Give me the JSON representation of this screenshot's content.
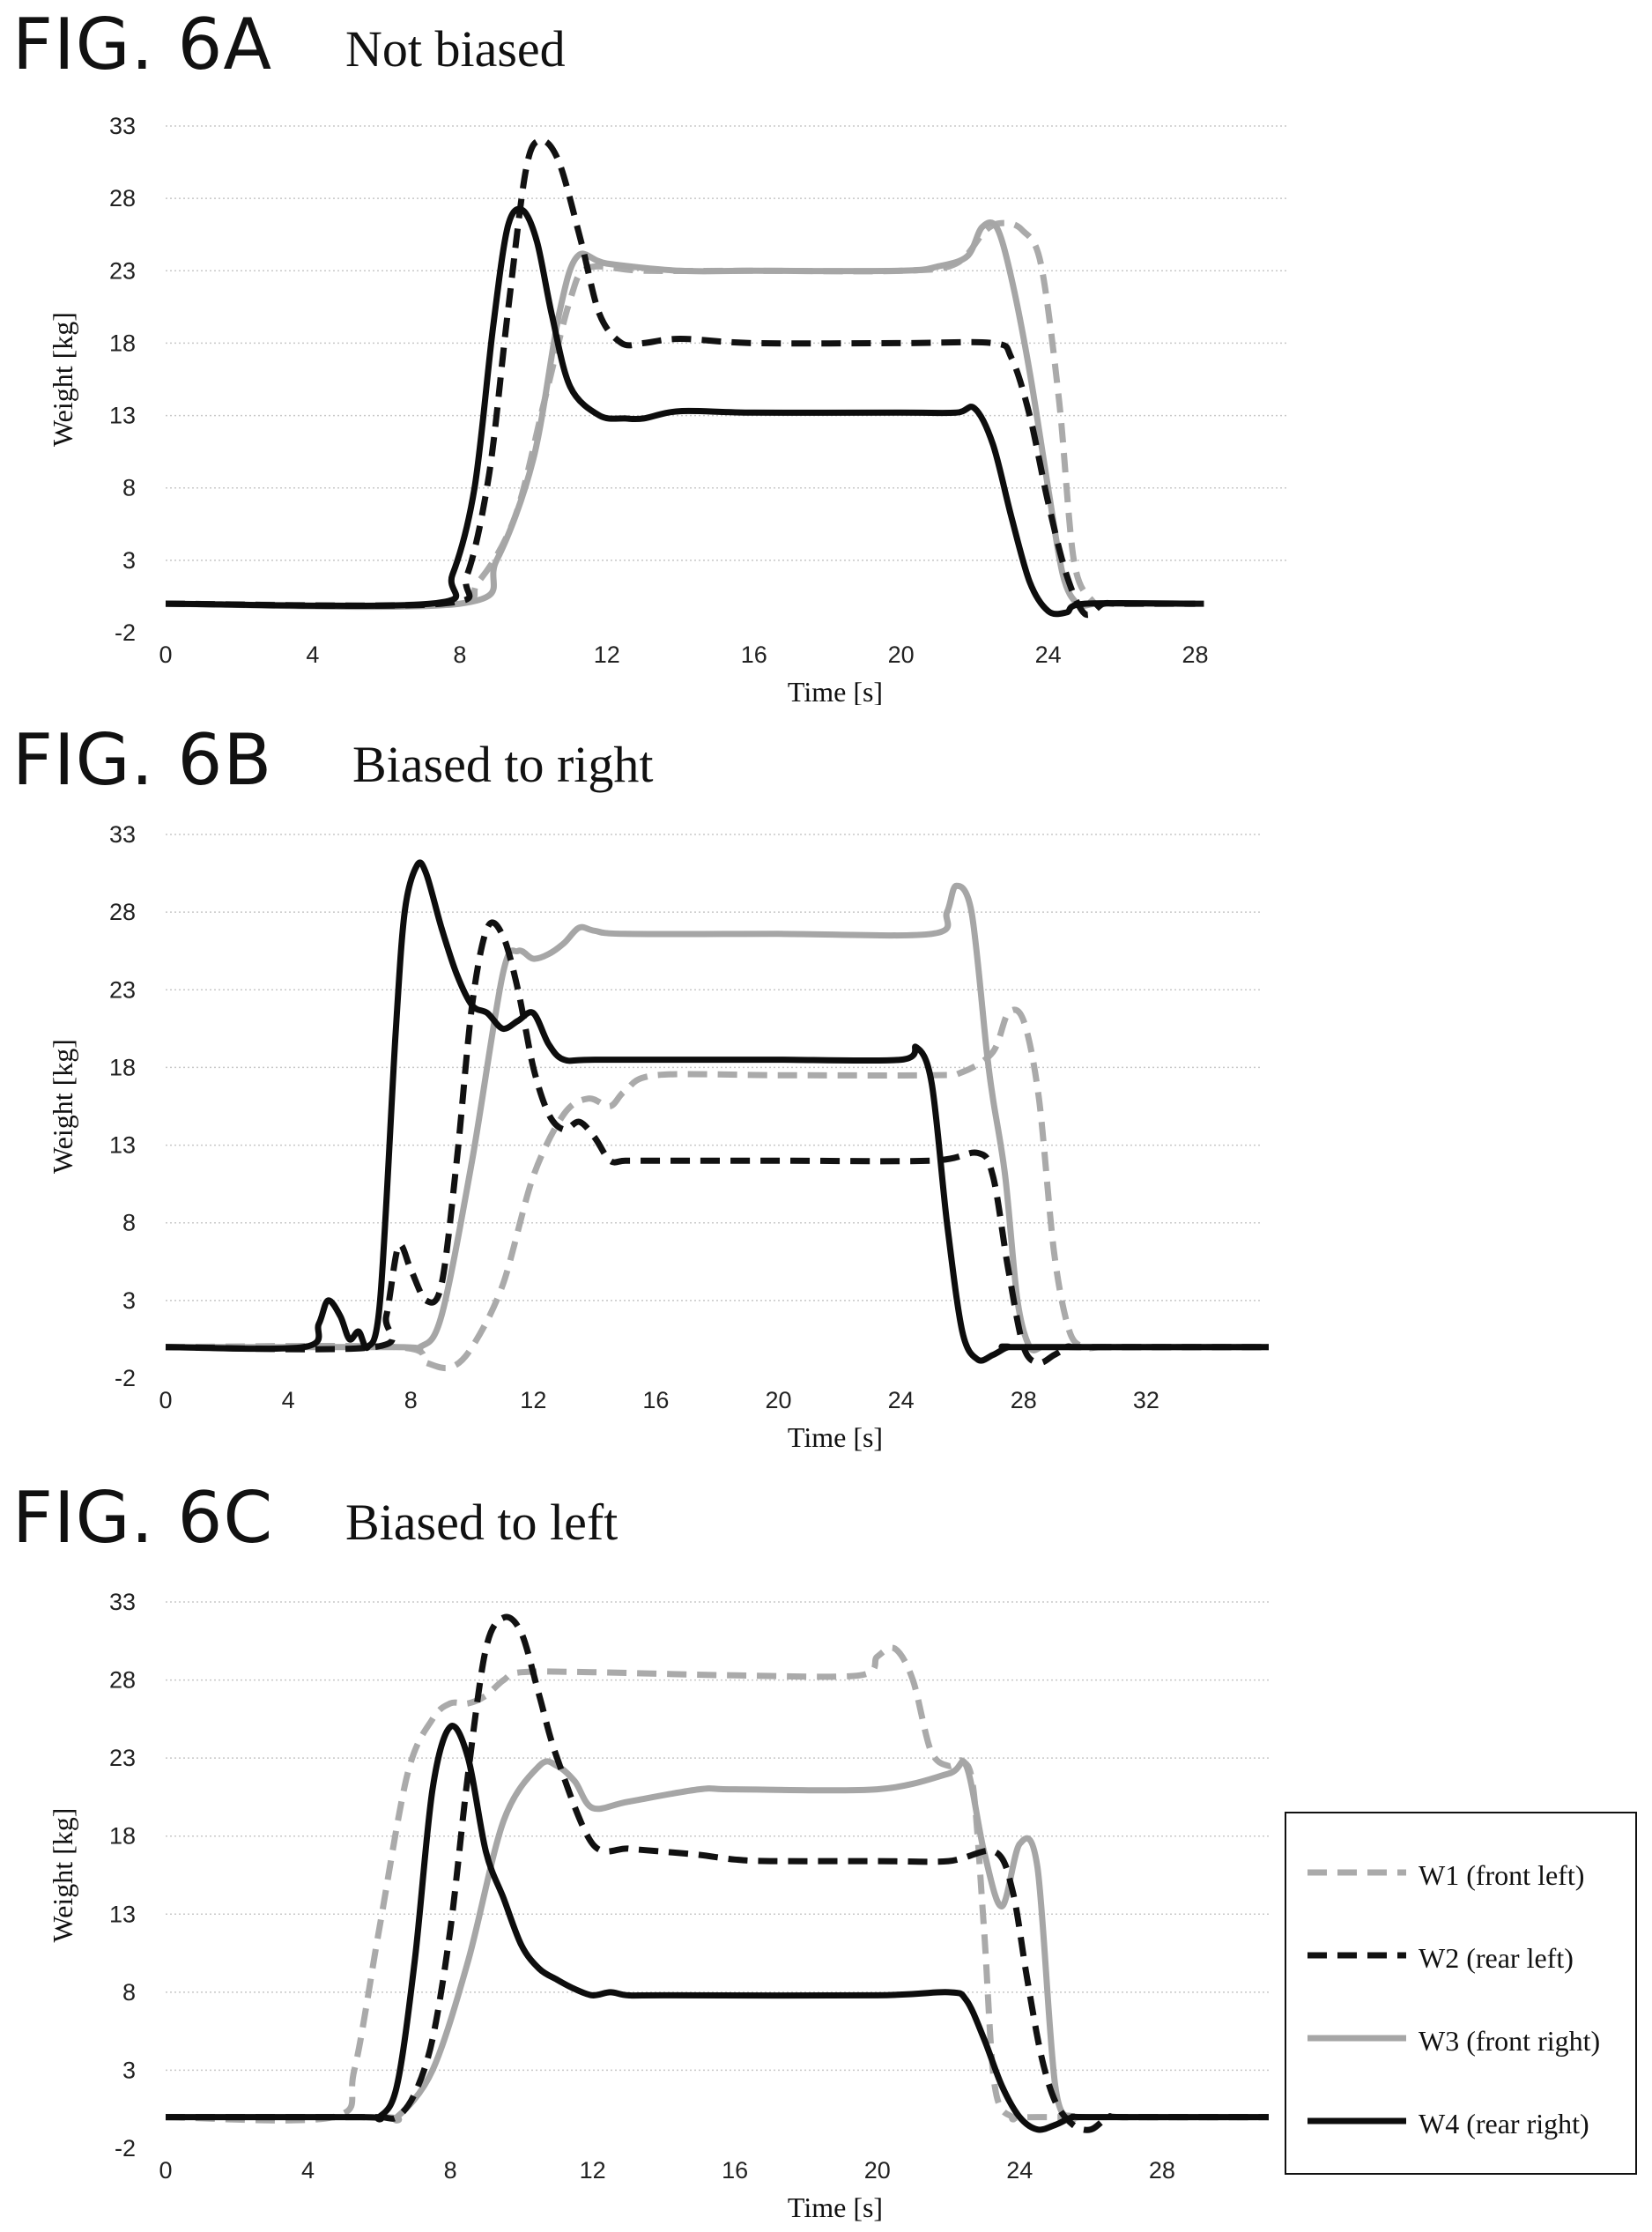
{
  "colors": {
    "w1": "#aaaaaa",
    "w2": "#111111",
    "w3": "#a6a6a6",
    "w4": "#0d0d0d",
    "grid": "#c8c8c8"
  },
  "series_styles": [
    {
      "key": "w1",
      "dash": true
    },
    {
      "key": "w2",
      "dash": true
    },
    {
      "key": "w3",
      "dash": false
    },
    {
      "key": "w4",
      "dash": false
    }
  ],
  "legend": {
    "items": [
      {
        "label": "W1 (front left)"
      },
      {
        "label": "W2 (rear left)"
      },
      {
        "label": "W3 (front right)"
      },
      {
        "label": "W4 (rear right)"
      }
    ]
  },
  "figures": [
    {
      "fig_label": "FIG. 6A",
      "subtitle": "Not biased"
    },
    {
      "fig_label": "FIG. 6B",
      "subtitle": "Biased to right"
    },
    {
      "fig_label": "FIG. 6C",
      "subtitle": "Biased to left"
    }
  ],
  "chart_data": [
    {
      "type": "line",
      "title": "Not biased",
      "xlabel": "Time [s]",
      "ylabel": "Weight [kg]",
      "xlim": [
        0,
        30
      ],
      "ylim": [
        -2,
        33
      ],
      "xticks": [
        0,
        4,
        8,
        12,
        16,
        20,
        24,
        28
      ],
      "yticks": [
        -2,
        3,
        8,
        13,
        18,
        23,
        28,
        33
      ],
      "grid": true,
      "series": [
        {
          "name": "W1 (front left)",
          "x": [
            0,
            7.5,
            8.5,
            9.5,
            10.3,
            11,
            11.5,
            13,
            16,
            20,
            21.5,
            22.3,
            22.8,
            23.3,
            23.8,
            24.3,
            24.7,
            25.2,
            25.6,
            26,
            28
          ],
          "y": [
            0,
            0,
            1.5,
            6,
            14,
            21,
            23.2,
            23,
            23,
            23,
            23.5,
            25.8,
            26.3,
            25.8,
            23.5,
            14,
            3,
            0.2,
            0,
            0,
            0
          ]
        },
        {
          "name": "W2 (rear left)",
          "x": [
            0,
            7.5,
            8.2,
            8.8,
            9.3,
            9.8,
            10.2,
            10.7,
            11.3,
            11.8,
            12.4,
            13,
            14,
            16,
            20,
            22.5,
            23,
            23.5,
            24,
            24.5,
            25,
            25.5,
            26,
            28.5
          ],
          "y": [
            0,
            0,
            2,
            9,
            20,
            30,
            32,
            30.5,
            25,
            20,
            18,
            18,
            18.3,
            18,
            18,
            18,
            17,
            13,
            7,
            2,
            -0.7,
            0,
            0,
            0
          ]
        },
        {
          "name": "W3 (front right)",
          "x": [
            0,
            8,
            9,
            10,
            10.7,
            11.2,
            12,
            14,
            16,
            20,
            21,
            21.8,
            22.2,
            22.6,
            23,
            23.5,
            24,
            24.4,
            24.8,
            25.3,
            26,
            28
          ],
          "y": [
            0,
            0,
            3,
            10,
            20,
            24,
            23.5,
            23,
            23,
            23,
            23.3,
            24,
            26,
            26,
            22.5,
            16,
            8,
            2,
            0,
            0,
            0,
            0
          ]
        },
        {
          "name": "W4 (rear right)",
          "x": [
            0,
            7.2,
            7.8,
            8.4,
            8.9,
            9.3,
            9.7,
            10.1,
            10.5,
            11,
            11.8,
            12.5,
            13,
            14,
            16,
            20,
            21.5,
            22,
            22.5,
            23,
            23.5,
            24,
            24.5,
            25,
            28
          ],
          "y": [
            0,
            0,
            2,
            8,
            19,
            26,
            27.2,
            25,
            20,
            15,
            13,
            12.8,
            12.8,
            13.3,
            13.2,
            13.2,
            13.2,
            13.5,
            11,
            6,
            1.5,
            -0.5,
            -0.6,
            0,
            0
          ]
        }
      ]
    },
    {
      "type": "line",
      "title": "Biased to right",
      "xlabel": "Time [s]",
      "ylabel": "Weight [kg]",
      "xlim": [
        0,
        36
      ],
      "ylim": [
        -2,
        33
      ],
      "xticks": [
        0,
        4,
        8,
        12,
        16,
        20,
        24,
        28,
        32
      ],
      "yticks": [
        -2,
        3,
        8,
        13,
        18,
        23,
        28,
        33
      ],
      "grid": true,
      "series": [
        {
          "name": "W1 (front left)",
          "x": [
            0,
            7.5,
            8.5,
            9.3,
            10,
            11,
            12,
            13,
            13.8,
            14.5,
            15,
            16,
            20,
            25,
            26,
            27,
            27.5,
            28,
            28.5,
            29,
            29.5,
            30,
            30.5,
            31,
            36
          ],
          "y": [
            0,
            0,
            -1,
            -1.3,
            0,
            4,
            11,
            15,
            16,
            15.5,
            16.5,
            17.5,
            17.5,
            17.5,
            17.7,
            19,
            21.5,
            21,
            16,
            6,
            1,
            0,
            0,
            0,
            0
          ]
        },
        {
          "name": "W2 (rear left)",
          "x": [
            0,
            6.8,
            7.2,
            7.6,
            8,
            8.5,
            9,
            9.5,
            10,
            10.5,
            11,
            11.5,
            12,
            12.5,
            13,
            13.5,
            14,
            14.5,
            15,
            16,
            20,
            25,
            26.5,
            27,
            27.5,
            28,
            28.5,
            29,
            29.5,
            30,
            36
          ],
          "y": [
            0,
            0,
            2,
            6.5,
            5,
            3,
            4,
            12,
            22,
            27,
            26.5,
            23,
            18,
            15,
            14,
            14.5,
            13.5,
            12,
            12,
            12,
            12,
            12,
            12.5,
            11,
            5,
            0,
            -1,
            -0.5,
            0,
            0,
            0
          ]
        },
        {
          "name": "W3 (front right)",
          "x": [
            0,
            7.5,
            8.3,
            9,
            10,
            11,
            11.5,
            12,
            12.5,
            13,
            13.5,
            14,
            15,
            20,
            25,
            25.5,
            25.8,
            26.3,
            26.8,
            27,
            27.4,
            27.8,
            28.2,
            28.6,
            29,
            36
          ],
          "y": [
            0,
            0,
            0,
            2,
            12,
            24,
            25.5,
            25,
            25.3,
            26,
            27,
            26.8,
            26.6,
            26.6,
            26.6,
            28,
            29.7,
            28,
            19,
            16,
            11,
            3,
            0,
            0,
            0,
            0
          ]
        },
        {
          "name": "W4 (rear right)",
          "x": [
            0,
            4.5,
            5,
            5.3,
            5.7,
            6,
            6.3,
            6.6,
            7,
            7.5,
            7.8,
            8.2,
            8.5,
            9,
            9.5,
            10,
            10.5,
            11,
            11.5,
            12,
            12.5,
            13,
            14,
            18,
            20,
            24,
            24.5,
            25,
            25.5,
            26,
            26.5,
            27,
            27.5,
            28,
            36
          ],
          "y": [
            0,
            0,
            1.5,
            3,
            2,
            0.5,
            1,
            0,
            3,
            20,
            28,
            31,
            30.5,
            27,
            24,
            22,
            21.5,
            20.5,
            21,
            21.5,
            19.5,
            18.5,
            18.5,
            18.5,
            18.5,
            18.5,
            19.3,
            17,
            8,
            1,
            -0.8,
            -0.5,
            0,
            0,
            0
          ]
        }
      ]
    },
    {
      "type": "line",
      "title": "Biased to left",
      "xlabel": "Time [s]",
      "ylabel": "Weight [kg]",
      "xlim": [
        0,
        31
      ],
      "ylim": [
        -2,
        33
      ],
      "xticks": [
        0,
        4,
        8,
        12,
        16,
        20,
        24,
        28
      ],
      "yticks": [
        -2,
        3,
        8,
        13,
        18,
        23,
        28,
        33
      ],
      "grid": true,
      "series": [
        {
          "name": "W1 (front left)",
          "x": [
            0,
            4.7,
            5.3,
            6,
            6.8,
            7.5,
            8,
            8.5,
            9,
            9.5,
            10,
            12,
            16,
            19.5,
            20,
            20.5,
            21,
            21.5,
            22,
            22.4,
            22.7,
            23,
            23.3,
            23.8,
            24.5,
            31
          ],
          "y": [
            0,
            0,
            3,
            12,
            22,
            25.5,
            26.5,
            26.5,
            27,
            28,
            28.5,
            28.5,
            28.3,
            28.3,
            29.5,
            30,
            28,
            23.5,
            22.5,
            22.8,
            21,
            12,
            2,
            0,
            0,
            0
          ]
        },
        {
          "name": "W2 (rear left)",
          "x": [
            0,
            4.5,
            6,
            6.5,
            7,
            7.5,
            8,
            8.5,
            9,
            9.5,
            10,
            10.5,
            11,
            12,
            13,
            14,
            15,
            16,
            17,
            20,
            22,
            23.3,
            23.8,
            24.2,
            24.6,
            25,
            25.5,
            26,
            26.5,
            27,
            31
          ],
          "y": [
            0,
            0,
            0,
            0,
            1.5,
            5,
            12,
            22,
            30,
            32,
            31,
            27,
            23,
            17.5,
            17.2,
            17,
            16.8,
            16.5,
            16.4,
            16.4,
            16.4,
            17,
            14.5,
            9,
            4,
            1,
            -0.5,
            -0.8,
            0,
            0,
            0
          ]
        },
        {
          "name": "W3 (front right)",
          "x": [
            0,
            6,
            6.5,
            7.5,
            8.5,
            9.5,
            10.5,
            11,
            11.5,
            12,
            13,
            15,
            16,
            20,
            22,
            22.5,
            23,
            23.5,
            24,
            24.5,
            25,
            25.5,
            26,
            31
          ],
          "y": [
            0,
            0,
            0,
            3,
            10,
            19,
            22.5,
            22.5,
            21.5,
            19.8,
            20.2,
            21,
            21,
            21,
            22,
            22.5,
            17,
            13.5,
            17.5,
            16,
            2,
            0,
            0,
            0
          ]
        },
        {
          "name": "W4 (rear right)",
          "x": [
            0,
            5.5,
            6,
            6.5,
            7,
            7.5,
            8,
            8.5,
            9,
            9.5,
            10,
            10.5,
            11,
            11.5,
            12,
            12.5,
            13,
            14,
            20,
            22,
            22.5,
            23,
            23.5,
            24,
            24.5,
            25,
            25.5,
            26,
            31
          ],
          "y": [
            0,
            0,
            0,
            2,
            10,
            21,
            25,
            23,
            17,
            14,
            11,
            9.5,
            8.8,
            8.2,
            7.8,
            8,
            7.8,
            7.8,
            7.8,
            8,
            7.5,
            5,
            2,
            0,
            -0.8,
            -0.5,
            0,
            0,
            0
          ]
        }
      ]
    }
  ]
}
